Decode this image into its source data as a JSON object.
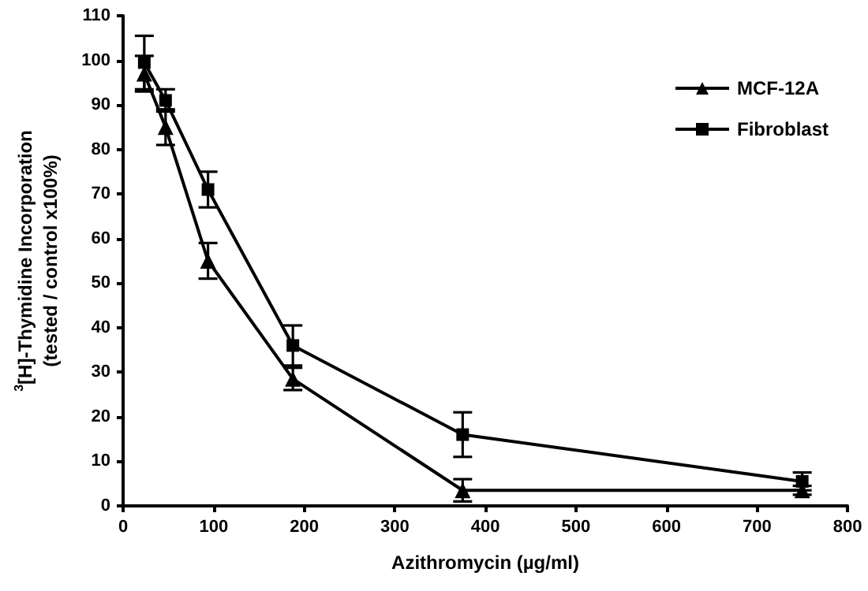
{
  "chart_data": {
    "type": "line",
    "xlabel": "Azithromycin (µg/ml)",
    "ylabel": "$^{3}$[H]-Thymidine Incorporation\n(tested / control x100%)",
    "x": [
      23.4,
      46.9,
      93.75,
      187.5,
      375,
      750
    ],
    "series": [
      {
        "name": "MCF-12A",
        "color": "#000000",
        "marker": "triangle",
        "values": [
          97,
          85,
          55,
          28.5,
          3.5,
          3.5
        ],
        "errors": [
          4,
          4,
          4,
          2.5,
          2.5,
          1
        ]
      },
      {
        "name": "Fibroblast",
        "color": "#000000",
        "marker": "square",
        "values": [
          99.5,
          91,
          71,
          36,
          16,
          5.5
        ],
        "errors": [
          6,
          2.5,
          4,
          4.5,
          5,
          2
        ]
      }
    ],
    "xlim": [
      0,
      800
    ],
    "xticks": [
      0,
      100,
      200,
      300,
      400,
      500,
      600,
      700,
      800
    ],
    "ylim": [
      0,
      110
    ],
    "yticks": [
      0,
      10,
      20,
      30,
      40,
      50,
      60,
      70,
      80,
      90,
      100,
      110
    ],
    "grid": false,
    "legend": "top right",
    "line_style": "solid"
  }
}
